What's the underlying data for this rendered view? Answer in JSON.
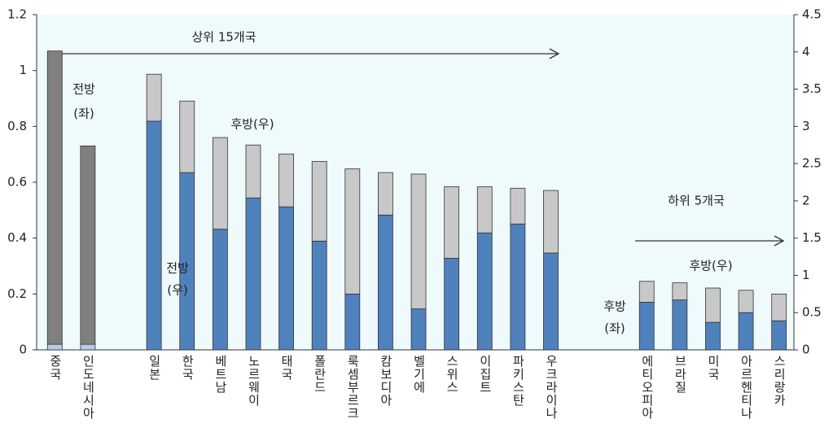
{
  "chart_data": {
    "type": "bar",
    "categories": [
      "중국",
      "인도네시아",
      null,
      "일본",
      "한국",
      "베트남",
      "노르웨이",
      "태국",
      "폴란드",
      "룩셈부르크",
      "캄보디아",
      "벨기에",
      "스위스",
      "이집트",
      "파키스탄",
      "우크라이나",
      null,
      "에티오피아",
      "브라질",
      "미국",
      "아르헨티나",
      "스리랑카"
    ],
    "series": [
      {
        "color": "#b8cce4",
        "values": [
          0.02,
          0.02,
          null,
          null,
          null,
          null,
          null,
          null,
          null,
          null,
          null,
          null,
          null,
          null,
          null,
          null,
          null,
          null,
          null,
          null,
          null,
          null
        ]
      },
      {
        "color": "#808080",
        "values": [
          1.05,
          0.71,
          null,
          null,
          null,
          null,
          null,
          null,
          null,
          null,
          null,
          null,
          null,
          null,
          null,
          null,
          null,
          null,
          null,
          null,
          null,
          null
        ]
      },
      {
        "color": "#4f81bd",
        "axis": "y2",
        "values": [
          null,
          null,
          null,
          3.07,
          2.38,
          1.62,
          2.04,
          1.92,
          1.46,
          0.75,
          1.81,
          0.55,
          1.23,
          1.57,
          1.69,
          1.3,
          null,
          0.64,
          0.67,
          0.37,
          0.5,
          0.39
        ]
      },
      {
        "color": "#c8c8c8",
        "axis": "y2",
        "values": [
          null,
          null,
          null,
          0.63,
          0.96,
          1.23,
          0.71,
          0.71,
          1.07,
          1.68,
          0.57,
          1.81,
          0.96,
          0.62,
          0.48,
          0.84,
          null,
          0.28,
          0.23,
          0.46,
          0.3,
          0.36
        ]
      }
    ],
    "ylim": [
      0,
      1.2
    ],
    "yticks": [
      0,
      0.2,
      0.4,
      0.6,
      0.8,
      1,
      1.2
    ],
    "y2lim": [
      0,
      4.5
    ],
    "y2ticks": [
      0,
      0.5,
      1,
      1.5,
      2,
      2.5,
      3,
      3.5,
      4,
      4.5
    ],
    "annotations": [
      "상위 15개국",
      "하위 5개국",
      [
        "전방",
        "(좌)"
      ],
      "후방(우)",
      [
        "전방",
        "(우)"
      ],
      [
        "후방",
        "(좌)"
      ],
      "후방(우)"
    ]
  }
}
